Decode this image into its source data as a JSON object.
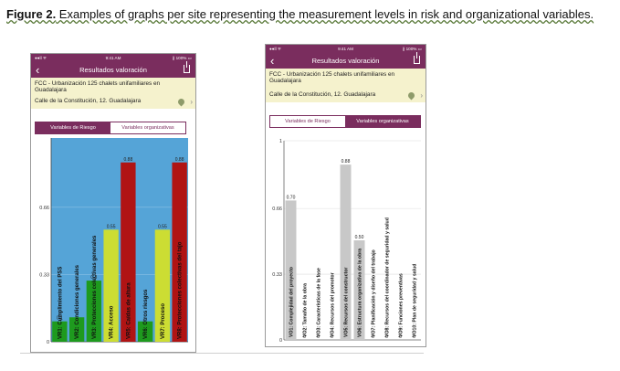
{
  "caption": {
    "lead": "Figure 2.",
    "text": " Examples of graphs per site representing the measurement levels in risk and organizational variables."
  },
  "phones": [
    {
      "status": {
        "left": "●●ll ᯤ",
        "time": "9:41 AM",
        "right": "∦ 100% ▭"
      },
      "nav": {
        "back": "‹",
        "title": "Resultados valoración",
        "share_icon": "share-icon"
      },
      "project": {
        "title": "FCC - Urbanización 125 chalets unifamiliares en Guadalajara",
        "address": "Calle de la Constitución, 12. Guadalajara",
        "icons": [
          "map-pin-icon",
          "chevron-right-icon"
        ]
      },
      "tabs": [
        {
          "label": "Variables de Riesgo",
          "active": true
        },
        {
          "label": "Variables organizativas",
          "active": false
        }
      ]
    },
    {
      "status": {
        "left": "●●ll ᯤ",
        "time": "9:41 AM",
        "right": "∦ 100% ▭"
      },
      "nav": {
        "back": "‹",
        "title": "Resultados valoración",
        "share_icon": "share-icon"
      },
      "project": {
        "title": "FCC - Urbanización 125 chalets unifamiliares en Guadalajara",
        "address": "Calle de la Constitución, 12. Guadalajara",
        "icons": [
          "map-pin-icon",
          "chevron-right-icon"
        ]
      },
      "tabs": [
        {
          "label": "Variables de Riesgo",
          "active": false
        },
        {
          "label": "Variables organizativas",
          "active": true
        }
      ]
    }
  ],
  "chart_data": [
    {
      "type": "bar",
      "ylim": [
        0,
        1
      ],
      "yticks": [
        0,
        0.33,
        0.66
      ],
      "ytick_labels": [
        "0",
        "0.33",
        "0.66"
      ],
      "background": "#55a4d7",
      "categories": [
        "VR1: Cumplimiento del PSS",
        "VR2: Condiciones generales",
        "VR3: Protecciones colectivas generales",
        "VR4: Acceso",
        "VR5: Caídas de altura",
        "VR6: Otros riesgos",
        "VR7: Proceso",
        "VR8: Protecciones colectivas del tajo"
      ],
      "values": [
        0.1,
        0.12,
        0.3,
        0.55,
        0.88,
        0.1,
        0.55,
        0.88
      ],
      "value_labels": [
        "0.1",
        "",
        "0.3",
        "0.55",
        "0.88",
        "",
        "0.55",
        "0.88"
      ],
      "colors": [
        "#1e9a1e",
        "#1e9a1e",
        "#1e9a1e",
        "#ccdd33",
        "#b01414",
        "#1e9a1e",
        "#ccdd33",
        "#b01414"
      ]
    },
    {
      "type": "bar",
      "ylim": [
        0,
        1
      ],
      "yticks": [
        0,
        0.33,
        0.66,
        1
      ],
      "ytick_labels": [
        "0",
        "0.33",
        "0.66",
        "1"
      ],
      "background": "#ffffff",
      "categories": [
        "VO1: Complejidad del proyecto",
        "VO2: Tamaño de la obra",
        "VO3: Características de la fase",
        "VO4: Recursos del promotor",
        "VO5: Recursos del constructor",
        "VO6: Estructura organizativa de la obra",
        "VO7: Planificación y diseño del trabajo",
        "VO8: Recursos del coordinador de seguridad y salud",
        "VO9: Funciones preventivas",
        "VO10: Plan de seguridad y salud"
      ],
      "values": [
        0.7,
        0.0,
        0.0,
        0.0,
        0.88,
        0.5,
        0.0,
        0.0,
        0.0,
        0.0
      ],
      "value_labels": [
        "0.70",
        "0",
        "0",
        "0",
        "0.88",
        "0.50",
        "0",
        "0",
        "0",
        "0"
      ],
      "colors": [
        "#c8c8c8",
        "#c8c8c8",
        "#c8c8c8",
        "#c8c8c8",
        "#c8c8c8",
        "#c8c8c8",
        "#c8c8c8",
        "#c8c8c8",
        "#c8c8c8",
        "#c8c8c8"
      ]
    }
  ]
}
